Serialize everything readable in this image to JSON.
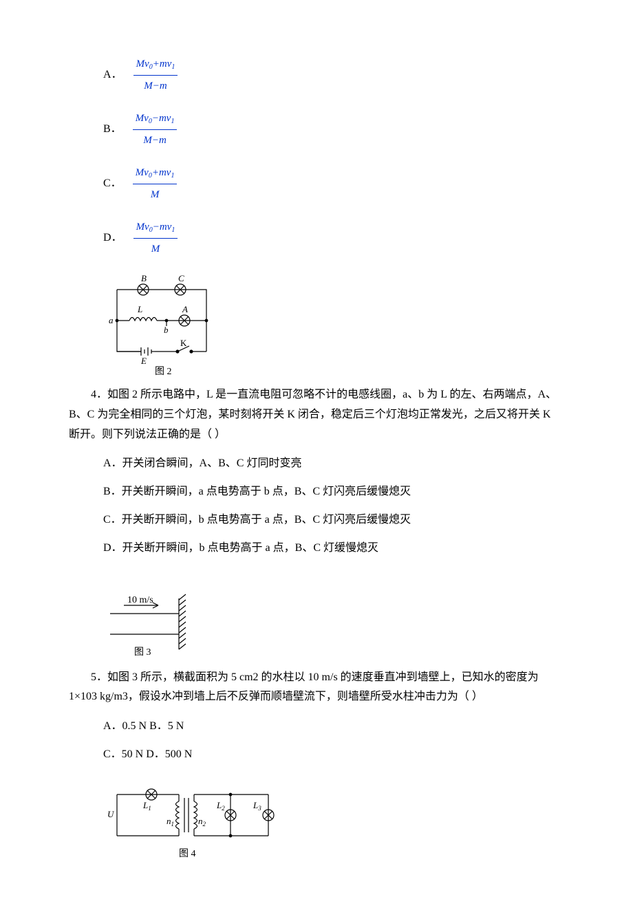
{
  "q3_options": {
    "A": {
      "label": "A．",
      "num_html": "Mv<span class='sub'>0</span>+mv<span class='sub'>1</span>",
      "den_html": "M−m"
    },
    "B": {
      "label": "B．",
      "num_html": "Mv<span class='sub'>0</span>−mv<span class='sub'>1</span>",
      "den_html": "M−m"
    },
    "C": {
      "label": "C．",
      "num_html": "Mv<span class='sub'>0</span>+mv<span class='sub'>1</span>",
      "den_html": "M"
    },
    "D": {
      "label": "D．",
      "num_html": "Mv<span class='sub'>0</span>−mv<span class='sub'>1</span>",
      "den_html": "M"
    }
  },
  "fig2": {
    "caption": "图 2",
    "labels": {
      "B": "B",
      "C": "C",
      "L": "L",
      "A": "A",
      "a": "a",
      "b": "b",
      "E": "E",
      "K": "K"
    }
  },
  "q4": {
    "text": "4．如图 2 所示电路中，L 是一直流电阻可忽略不计的电感线圈，a、b 为 L 的左、右两端点，A、B、C 为完全相同的三个灯泡，某时刻将开关 K 闭合，稳定后三个灯泡均正常发光，之后又将开关 K 断开。则下列说法正确的是（  ）",
    "A": "A．开关闭合瞬间，A、B、C 灯同时变亮",
    "B": "B．开关断开瞬间，a 点电势高于 b 点，B、C 灯闪亮后缓慢熄灭",
    "C": "C．开关断开瞬间，b 点电势高于 a 点，B、C 灯闪亮后缓慢熄灭",
    "D": "D．开关断开瞬间，b 点电势高于 a 点，B、C 灯缓慢熄灭"
  },
  "fig3": {
    "caption": "图 3",
    "speed": "10 m/s"
  },
  "q5": {
    "text": "5．如图 3 所示，横截面积为 5 cm2 的水柱以 10 m/s 的速度垂直冲到墙壁上，已知水的密度为 1×103 kg/m3，假设水冲到墙上后不反弹而顺墙壁流下，则墙壁所受水柱冲击力为（  ）",
    "row1": "A．0.5 N B．5 N",
    "row2": "C．50 N D．500 N"
  },
  "fig4": {
    "caption": "图 4",
    "labels": {
      "U": "U",
      "L1": "L",
      "L1s": "1",
      "L2": "L",
      "L2s": "2",
      "L3": "L",
      "L3s": "3",
      "n1": "n",
      "n1s": "1",
      "n2": "n",
      "n2s": "2"
    }
  }
}
